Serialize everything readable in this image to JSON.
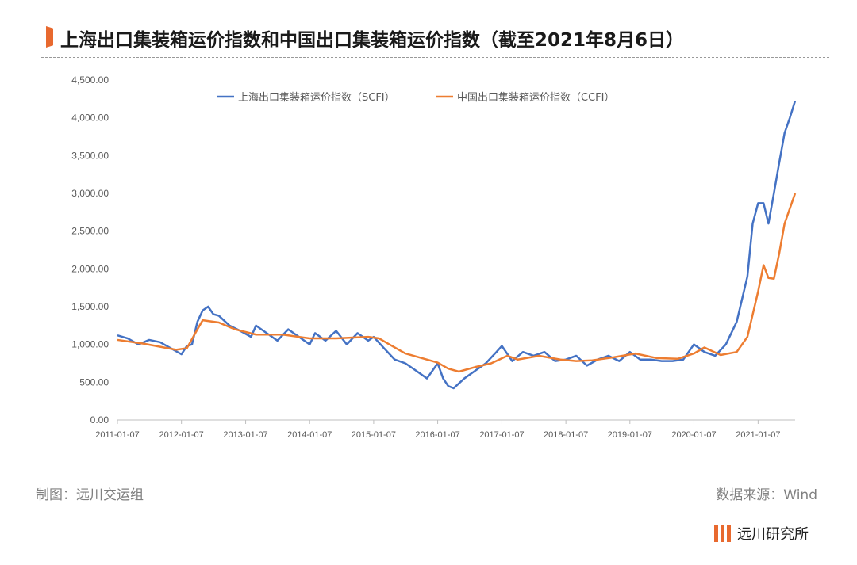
{
  "title": "上海出口集装箱运价指数和中国出口集装箱运价指数（截至2021年8月6日）",
  "footer": {
    "maker": "制图：远川交运组",
    "source": "数据来源：Wind",
    "logo_text": "远川研究所"
  },
  "colors": {
    "accent": "#e8692f",
    "scfi": "#4472c4",
    "ccfi": "#ed7d31"
  },
  "chart_data": {
    "type": "line",
    "title": "",
    "xlabel": "",
    "ylabel": "",
    "ylim": [
      0,
      4500
    ],
    "yticks": [
      "0.00",
      "500.00",
      "1,000.00",
      "1,500.00",
      "2,000.00",
      "2,500.00",
      "3,000.00",
      "3,500.00",
      "4,000.00",
      "4,500.00"
    ],
    "xticks": [
      "2011-01-07",
      "2012-01-07",
      "2013-01-07",
      "2014-01-07",
      "2015-01-07",
      "2016-01-07",
      "2017-01-07",
      "2018-01-07",
      "2019-01-07",
      "2020-01-07",
      "2021-01-07"
    ],
    "xlim": [
      "2011-01-07",
      "2021-08-06"
    ],
    "grid": false,
    "legend": "top",
    "series": [
      {
        "name": "上海出口集装箱运价指数（SCFI）",
        "points": [
          [
            "2011-01-07",
            1120
          ],
          [
            "2011-03-07",
            1080
          ],
          [
            "2011-05-07",
            1000
          ],
          [
            "2011-07-07",
            1060
          ],
          [
            "2011-09-07",
            1030
          ],
          [
            "2011-11-07",
            950
          ],
          [
            "2012-01-07",
            870
          ],
          [
            "2012-02-07",
            980
          ],
          [
            "2012-03-07",
            1000
          ],
          [
            "2012-04-07",
            1300
          ],
          [
            "2012-05-07",
            1450
          ],
          [
            "2012-06-07",
            1500
          ],
          [
            "2012-07-07",
            1400
          ],
          [
            "2012-08-07",
            1380
          ],
          [
            "2012-10-07",
            1250
          ],
          [
            "2012-12-07",
            1180
          ],
          [
            "2013-02-07",
            1100
          ],
          [
            "2013-03-07",
            1250
          ],
          [
            "2013-05-07",
            1150
          ],
          [
            "2013-07-07",
            1050
          ],
          [
            "2013-09-07",
            1200
          ],
          [
            "2013-11-07",
            1100
          ],
          [
            "2014-01-07",
            1000
          ],
          [
            "2014-02-07",
            1150
          ],
          [
            "2014-04-07",
            1050
          ],
          [
            "2014-06-07",
            1180
          ],
          [
            "2014-08-07",
            1000
          ],
          [
            "2014-10-07",
            1150
          ],
          [
            "2014-12-07",
            1050
          ],
          [
            "2015-01-07",
            1100
          ],
          [
            "2015-03-07",
            950
          ],
          [
            "2015-05-07",
            800
          ],
          [
            "2015-07-07",
            750
          ],
          [
            "2015-09-07",
            650
          ],
          [
            "2015-11-07",
            550
          ],
          [
            "2016-01-07",
            750
          ],
          [
            "2016-02-07",
            550
          ],
          [
            "2016-03-07",
            450
          ],
          [
            "2016-04-07",
            420
          ],
          [
            "2016-06-07",
            550
          ],
          [
            "2016-08-07",
            650
          ],
          [
            "2016-10-07",
            750
          ],
          [
            "2016-12-07",
            900
          ],
          [
            "2017-01-07",
            980
          ],
          [
            "2017-03-07",
            780
          ],
          [
            "2017-05-07",
            900
          ],
          [
            "2017-07-07",
            850
          ],
          [
            "2017-09-07",
            900
          ],
          [
            "2017-11-07",
            780
          ],
          [
            "2018-01-07",
            800
          ],
          [
            "2018-03-07",
            850
          ],
          [
            "2018-05-07",
            720
          ],
          [
            "2018-07-07",
            800
          ],
          [
            "2018-09-07",
            850
          ],
          [
            "2018-11-07",
            780
          ],
          [
            "2019-01-07",
            900
          ],
          [
            "2019-03-07",
            800
          ],
          [
            "2019-05-07",
            800
          ],
          [
            "2019-07-07",
            780
          ],
          [
            "2019-09-07",
            780
          ],
          [
            "2019-11-07",
            800
          ],
          [
            "2020-01-07",
            1000
          ],
          [
            "2020-03-07",
            900
          ],
          [
            "2020-05-07",
            850
          ],
          [
            "2020-07-07",
            1000
          ],
          [
            "2020-09-07",
            1300
          ],
          [
            "2020-11-07",
            1900
          ],
          [
            "2020-12-07",
            2600
          ],
          [
            "2021-01-07",
            2870
          ],
          [
            "2021-02-07",
            2870
          ],
          [
            "2021-03-07",
            2600
          ],
          [
            "2021-04-07",
            3000
          ],
          [
            "2021-05-07",
            3400
          ],
          [
            "2021-06-07",
            3800
          ],
          [
            "2021-07-07",
            4000
          ],
          [
            "2021-08-06",
            4225
          ]
        ]
      },
      {
        "name": "中国出口集装箱运价指数（CCFI）",
        "points": [
          [
            "2011-01-07",
            1060
          ],
          [
            "2011-06-07",
            1010
          ],
          [
            "2011-12-07",
            930
          ],
          [
            "2012-02-07",
            950
          ],
          [
            "2012-04-07",
            1200
          ],
          [
            "2012-05-07",
            1320
          ],
          [
            "2012-08-07",
            1290
          ],
          [
            "2012-11-07",
            1200
          ],
          [
            "2013-03-07",
            1130
          ],
          [
            "2013-08-07",
            1130
          ],
          [
            "2014-01-07",
            1080
          ],
          [
            "2014-06-07",
            1080
          ],
          [
            "2014-12-07",
            1100
          ],
          [
            "2015-02-07",
            1080
          ],
          [
            "2015-04-07",
            1000
          ],
          [
            "2015-07-07",
            880
          ],
          [
            "2015-10-07",
            820
          ],
          [
            "2016-01-07",
            760
          ],
          [
            "2016-03-07",
            680
          ],
          [
            "2016-05-07",
            640
          ],
          [
            "2016-08-07",
            700
          ],
          [
            "2016-11-07",
            750
          ],
          [
            "2017-02-07",
            850
          ],
          [
            "2017-04-07",
            800
          ],
          [
            "2017-08-07",
            850
          ],
          [
            "2017-12-07",
            800
          ],
          [
            "2018-03-07",
            780
          ],
          [
            "2018-06-07",
            790
          ],
          [
            "2018-10-07",
            830
          ],
          [
            "2019-02-07",
            880
          ],
          [
            "2019-06-07",
            820
          ],
          [
            "2019-10-07",
            810
          ],
          [
            "2020-01-07",
            880
          ],
          [
            "2020-03-07",
            960
          ],
          [
            "2020-06-07",
            860
          ],
          [
            "2020-09-07",
            900
          ],
          [
            "2020-11-07",
            1100
          ],
          [
            "2021-01-07",
            1700
          ],
          [
            "2021-02-07",
            2050
          ],
          [
            "2021-03-07",
            1880
          ],
          [
            "2021-04-07",
            1870
          ],
          [
            "2021-05-07",
            2200
          ],
          [
            "2021-06-07",
            2600
          ],
          [
            "2021-08-06",
            3000
          ]
        ]
      }
    ]
  }
}
